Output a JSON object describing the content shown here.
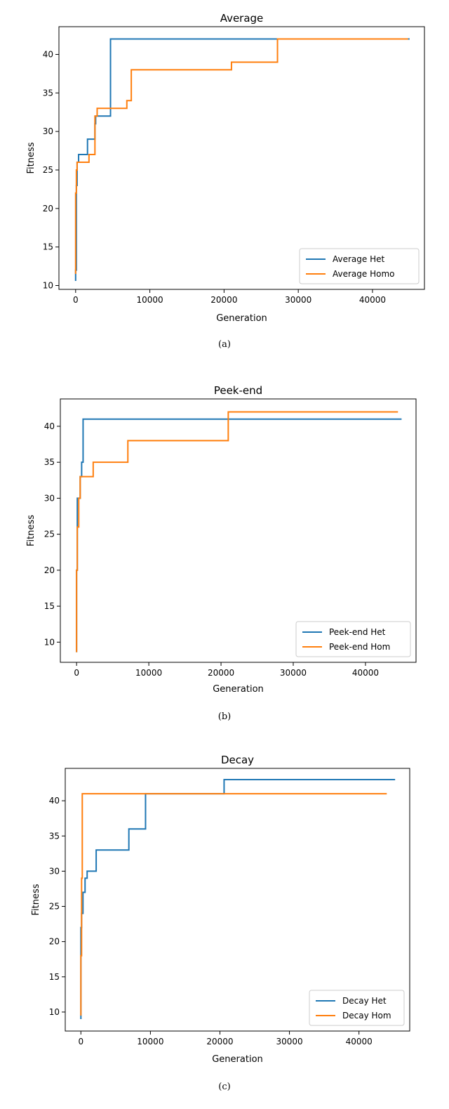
{
  "colors": {
    "het": "#1f77b4",
    "homo": "#ff7f0e"
  },
  "chart_data": [
    {
      "type": "line",
      "caption": "(a)",
      "title": "Average",
      "xlabel": "Generation",
      "ylabel": "Fitness",
      "xlim": [
        -2250,
        47000
      ],
      "ylim": [
        9.5,
        43.6
      ],
      "xticks": [
        0,
        10000,
        20000,
        30000,
        40000
      ],
      "yticks": [
        10,
        15,
        20,
        25,
        30,
        35,
        40
      ],
      "legend_position": "lower-right",
      "grid": false,
      "series": [
        {
          "name": "Average Het",
          "color": "#1f77b4",
          "x": [
            0,
            0,
            100,
            100,
            200,
            200,
            400,
            400,
            1600,
            1600,
            2600,
            2600,
            2700,
            2700,
            4700,
            4700,
            45000
          ],
          "y": [
            10.6,
            12,
            12,
            23,
            23,
            26,
            26,
            27,
            27,
            29,
            29,
            31,
            31,
            32,
            32,
            42,
            42
          ]
        },
        {
          "name": "Average Homo",
          "color": "#ff7f0e",
          "x": [
            0,
            0,
            100,
            100,
            200,
            200,
            1800,
            1800,
            2600,
            2600,
            2900,
            2900,
            6900,
            6900,
            7500,
            7500,
            21000,
            21000,
            27200,
            27200,
            44800
          ],
          "y": [
            11.5,
            22,
            22,
            25,
            25,
            26,
            26,
            27,
            27,
            32,
            32,
            33,
            33,
            34,
            34,
            38,
            38,
            39,
            39,
            42,
            42
          ]
        }
      ]
    },
    {
      "type": "line",
      "caption": "(b)",
      "title": "Peek-end",
      "xlabel": "Generation",
      "ylabel": "Fitness",
      "xlim": [
        -2250,
        47000
      ],
      "ylim": [
        7.2,
        43.8
      ],
      "xticks": [
        0,
        10000,
        20000,
        30000,
        40000
      ],
      "yticks": [
        10,
        15,
        20,
        25,
        30,
        35,
        40
      ],
      "legend_position": "lower-right",
      "grid": false,
      "series": [
        {
          "name": "Peek-end Het",
          "color": "#1f77b4",
          "x": [
            0,
            0,
            100,
            100,
            500,
            500,
            700,
            700,
            900,
            900,
            45000
          ],
          "y": [
            8.6,
            20,
            20,
            30,
            30,
            33,
            33,
            35,
            35,
            41,
            41
          ]
        },
        {
          "name": "Peek-end Hom",
          "color": "#ff7f0e",
          "x": [
            0,
            0,
            100,
            100,
            300,
            300,
            500,
            500,
            1100,
            1100,
            2300,
            2300,
            7100,
            7100,
            21000,
            21000,
            44500
          ],
          "y": [
            8.6,
            20,
            20,
            26,
            26,
            30,
            30,
            33,
            33,
            33,
            33,
            35,
            35,
            38,
            38,
            42,
            42
          ]
        }
      ]
    },
    {
      "type": "line",
      "caption": "(c)",
      "title": "Decay",
      "xlabel": "Generation",
      "ylabel": "Fitness",
      "xlim": [
        -2250,
        47300
      ],
      "ylim": [
        7.3,
        44.6
      ],
      "xticks": [
        0,
        10000,
        20000,
        30000,
        40000
      ],
      "yticks": [
        10,
        15,
        20,
        25,
        30,
        35,
        40
      ],
      "legend_position": "lower-right",
      "grid": false,
      "series": [
        {
          "name": "Decay Het",
          "color": "#1f77b4",
          "x": [
            0,
            0,
            100,
            100,
            300,
            300,
            600,
            600,
            900,
            900,
            1200,
            1200,
            2200,
            2200,
            6900,
            6900,
            9300,
            9300,
            20600,
            20600,
            45200
          ],
          "y": [
            9,
            22,
            22,
            24,
            24,
            27,
            27,
            29,
            29,
            30,
            30,
            30,
            30,
            33,
            33,
            36,
            36,
            41,
            41,
            43,
            43
          ]
        },
        {
          "name": "Decay Hom",
          "color": "#ff7f0e",
          "x": [
            0,
            0,
            100,
            100,
            200,
            200,
            44000
          ],
          "y": [
            9.5,
            18,
            18,
            29,
            29,
            41,
            41
          ]
        }
      ]
    }
  ]
}
